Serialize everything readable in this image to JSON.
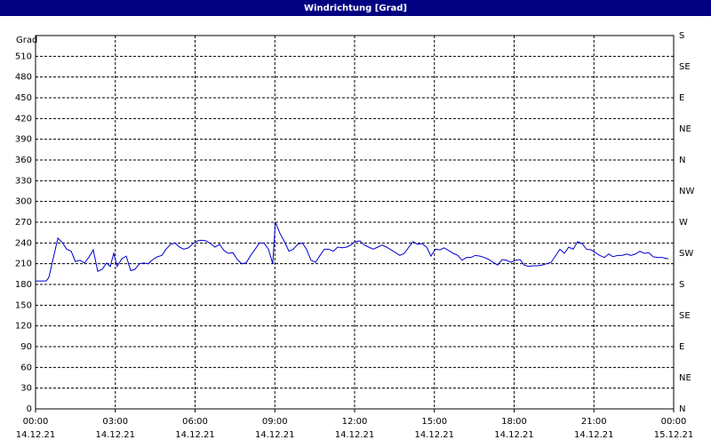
{
  "chart_data": {
    "type": "line",
    "title": "Windrichtung [Grad]",
    "y_label": "Grad",
    "xlim": [
      0,
      24
    ],
    "xticks": [
      {
        "value": 0,
        "label": "00:00"
      },
      {
        "value": 3,
        "label": "03:00"
      },
      {
        "value": 6,
        "label": "06:00"
      },
      {
        "value": 9,
        "label": "09:00"
      },
      {
        "value": 12,
        "label": "12:00"
      },
      {
        "value": 15,
        "label": "15:00"
      },
      {
        "value": 18,
        "label": "18:00"
      },
      {
        "value": 21,
        "label": "21:00"
      },
      {
        "value": 24,
        "label": "00:00"
      }
    ],
    "xtick_dates": [
      "14.12.21",
      "14.12.21",
      "14.12.21",
      "14.12.21",
      "14.12.21",
      "14.12.21",
      "14.12.21",
      "14.12.21",
      "15.12.21"
    ],
    "ylim": [
      0,
      540
    ],
    "yticks": [
      0,
      30,
      60,
      90,
      120,
      150,
      180,
      210,
      240,
      270,
      300,
      330,
      360,
      390,
      420,
      450,
      480,
      510
    ],
    "y2lim": [
      0,
      540
    ],
    "y2ticks": [
      {
        "value": 0,
        "label": "N"
      },
      {
        "value": 45,
        "label": "NE"
      },
      {
        "value": 90,
        "label": "E"
      },
      {
        "value": 135,
        "label": "SE"
      },
      {
        "value": 180,
        "label": "S"
      },
      {
        "value": 225,
        "label": "SW"
      },
      {
        "value": 270,
        "label": "W"
      },
      {
        "value": 315,
        "label": "NW"
      },
      {
        "value": 360,
        "label": "N"
      },
      {
        "value": 405,
        "label": "NE"
      },
      {
        "value": 450,
        "label": "E"
      },
      {
        "value": 495,
        "label": "SE"
      },
      {
        "value": 540,
        "label": "S"
      }
    ],
    "grid": true,
    "x": [
      0,
      0.4,
      0.5,
      0.84,
      1.0,
      1.17,
      1.34,
      1.5,
      1.67,
      1.84,
      2.0,
      2.17,
      2.34,
      2.51,
      2.67,
      2.81,
      2.94,
      3.07,
      3.24,
      3.41,
      3.58,
      3.74,
      3.91,
      4.08,
      4.24,
      4.41,
      4.58,
      4.75,
      4.91,
      5.08,
      5.25,
      5.41,
      5.58,
      5.75,
      5.92,
      6.08,
      6.25,
      6.42,
      6.58,
      6.75,
      6.92,
      7.09,
      7.25,
      7.42,
      7.59,
      7.75,
      7.92,
      8.09,
      8.26,
      8.42,
      8.59,
      8.76,
      8.92,
      9.02,
      9.19,
      9.36,
      9.53,
      9.69,
      9.86,
      10.03,
      10.19,
      10.36,
      10.53,
      10.7,
      10.86,
      11.03,
      11.2,
      11.36,
      11.53,
      11.7,
      11.86,
      12.03,
      12.2,
      12.37,
      12.53,
      12.7,
      12.87,
      13.03,
      13.2,
      13.37,
      13.54,
      13.7,
      13.87,
      14.04,
      14.2,
      14.37,
      14.54,
      14.71,
      14.87,
      15.04,
      15.21,
      15.37,
      15.54,
      15.71,
      15.88,
      16.04,
      16.21,
      16.38,
      16.54,
      16.71,
      16.88,
      17.05,
      17.21,
      17.38,
      17.55,
      17.71,
      17.88,
      18.05,
      18.22,
      18.38,
      18.55,
      18.72,
      18.88,
      19.05,
      19.22,
      19.39,
      19.55,
      19.72,
      19.89,
      20.05,
      20.22,
      20.39,
      20.56,
      20.72,
      20.89,
      21.06,
      21.22,
      21.39,
      21.56,
      21.72,
      21.89,
      22.06,
      22.23,
      22.39,
      22.56,
      22.73,
      22.89,
      23.06,
      23.23,
      23.4,
      23.56,
      23.8
    ],
    "series": [
      {
        "color": "#0000cc",
        "values": [
          185,
          185,
          190,
          247,
          241,
          231,
          228,
          213,
          215,
          211,
          219,
          230,
          199,
          202,
          211,
          206,
          225,
          206,
          217,
          221,
          200,
          202,
          210,
          211,
          210,
          216,
          220,
          222,
          231,
          238,
          240,
          234,
          231,
          233,
          239,
          243,
          244,
          243,
          239,
          234,
          238,
          229,
          225,
          226,
          216,
          210,
          211,
          222,
          231,
          240,
          240,
          231,
          210,
          270,
          254,
          242,
          228,
          231,
          238,
          240,
          231,
          215,
          212,
          222,
          231,
          231,
          228,
          234,
          233,
          234,
          237,
          242,
          243,
          237,
          234,
          231,
          234,
          237,
          234,
          230,
          226,
          222,
          225,
          234,
          242,
          238,
          239,
          234,
          221,
          231,
          230,
          233,
          229,
          225,
          222,
          215,
          219,
          219,
          222,
          221,
          219,
          216,
          212,
          208,
          216,
          215,
          212,
          215,
          216,
          208,
          206,
          207,
          207,
          208,
          210,
          212,
          221,
          231,
          225,
          234,
          231,
          242,
          239,
          231,
          230,
          226,
          222,
          219,
          224,
          220,
          222,
          222,
          224,
          222,
          224,
          228,
          225,
          226,
          220,
          219,
          219,
          217
        ]
      }
    ]
  }
}
